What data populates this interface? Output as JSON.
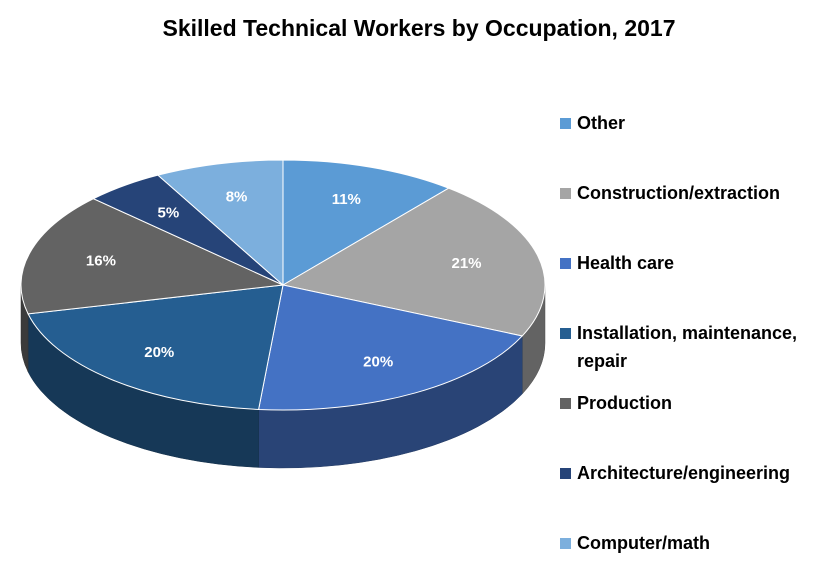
{
  "chart_data": {
    "type": "pie3d",
    "title": "Skilled Technical Workers by Occupation, 2017",
    "categories": [
      "Other",
      "Construction/extraction",
      "Health care",
      "Installation, maintenance, repair",
      "Production",
      "Architecture/engineering",
      "Computer/math"
    ],
    "values": [
      11,
      21,
      20,
      20,
      16,
      5,
      8
    ],
    "value_labels": [
      "11%",
      "21%",
      "20%",
      "20%",
      "16%",
      "5%",
      "8%"
    ],
    "colors": [
      "#5b9bd5",
      "#a5a5a5",
      "#4472c4",
      "#255e91",
      "#636363",
      "#264478",
      "#7cafdd"
    ],
    "legend": "right"
  }
}
